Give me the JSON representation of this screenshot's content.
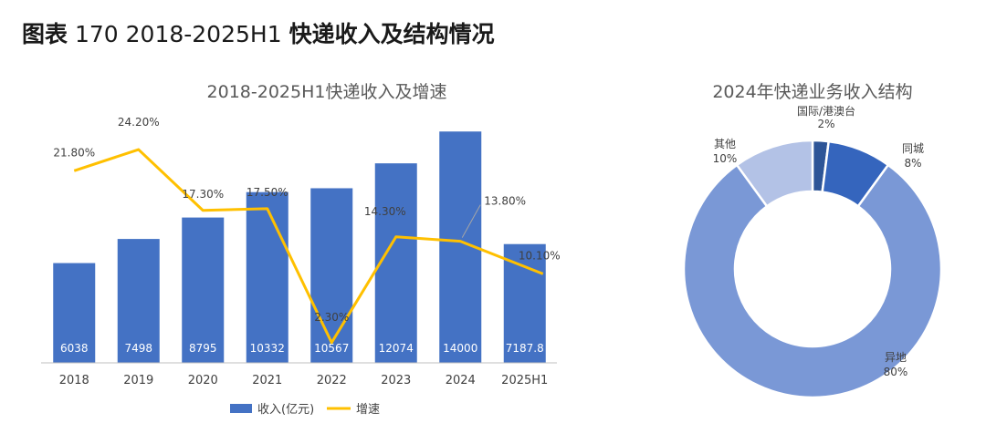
{
  "figure": {
    "label": "图表",
    "number": "170 2018-2025H1",
    "title": "快递收入及结构情况"
  },
  "chart_data": [
    {
      "type": "bar",
      "title": "2018-2025H1快递收入及增速",
      "categories": [
        "2018",
        "2019",
        "2020",
        "2021",
        "2022",
        "2023",
        "2024",
        "2025H1"
      ],
      "series": [
        {
          "name": "收入(亿元)",
          "type": "bar",
          "color": "#4472C4",
          "values": [
            6038,
            7498,
            8795,
            10332,
            10567,
            12074,
            14000,
            7187.8
          ],
          "labels": [
            "6038",
            "7498",
            "8795",
            "10332",
            "10567",
            "12074",
            "14000",
            "7187.8"
          ]
        },
        {
          "name": "增速",
          "type": "line",
          "color": "#FFC000",
          "values": [
            21.8,
            24.2,
            17.3,
            17.5,
            2.3,
            14.3,
            13.8,
            10.1
          ],
          "labels": [
            "21.80%",
            "24.20%",
            "17.30%",
            "17.50%",
            "2.30%",
            "14.30%",
            "13.80%",
            "10.10%"
          ]
        }
      ],
      "ylim_bar": [
        0,
        16000
      ],
      "ylim_line": [
        0,
        30
      ],
      "legend": "bottom",
      "grid": false
    },
    {
      "type": "pie",
      "subtype": "donut",
      "title": "2024年快递业务收入结构",
      "slices": [
        {
          "name": "国际/港澳台",
          "value": 2,
          "label": "2%",
          "color": "#2E5597"
        },
        {
          "name": "同城",
          "value": 8,
          "label": "8%",
          "color": "#3565BD"
        },
        {
          "name": "异地",
          "value": 80,
          "label": "80%",
          "color": "#7A98D6"
        },
        {
          "name": "其他",
          "value": 10,
          "label": "10%",
          "color": "#B3C2E6"
        }
      ]
    }
  ]
}
